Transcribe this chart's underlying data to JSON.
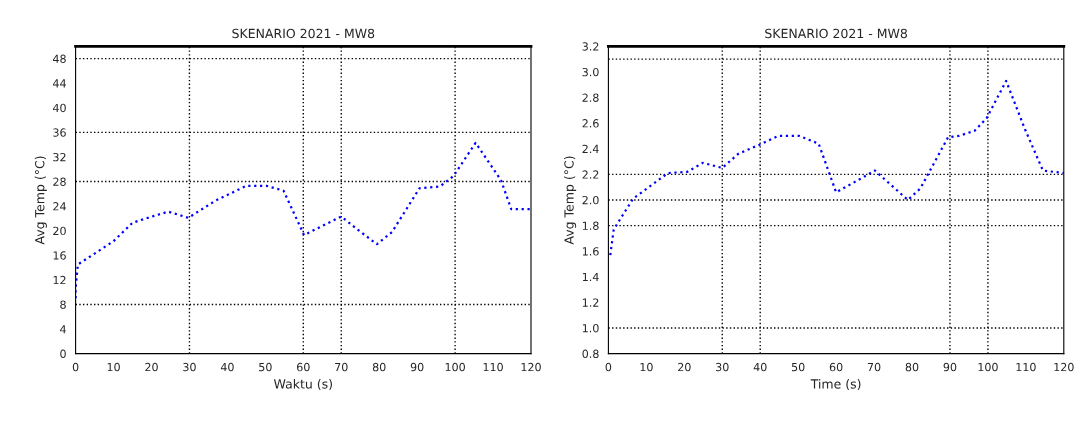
{
  "chart_data": [
    {
      "type": "line",
      "title": "SKENARIO 2021 - MW8",
      "xlabel": "Waktu (s)",
      "ylabel": "Avg Temp (°C)",
      "xlim": [
        0,
        120
      ],
      "xticks": [
        0,
        10,
        20,
        30,
        40,
        50,
        60,
        70,
        80,
        90,
        100,
        110,
        120
      ],
      "ylim": [
        0,
        50
      ],
      "yticks": [
        0,
        4,
        8,
        12,
        16,
        20,
        24,
        28,
        32,
        36,
        40,
        44,
        48
      ],
      "grid": false,
      "line_style": "dotted",
      "marker": "none",
      "ref_lines": [
        {
          "axis": "y",
          "value": 48,
          "color": "#000000",
          "line_style": "dotted"
        },
        {
          "axis": "y",
          "value": 36,
          "color": "#000000",
          "line_style": "dotted"
        },
        {
          "axis": "y",
          "value": 28,
          "color": "#000000",
          "line_style": "dotted"
        },
        {
          "axis": "y",
          "value": 8,
          "color": "#000000",
          "line_style": "dotted"
        },
        {
          "axis": "x",
          "value": 30,
          "color": "#000000",
          "line_style": "dotted"
        },
        {
          "axis": "x",
          "value": 60,
          "color": "#000000",
          "line_style": "dotted"
        },
        {
          "axis": "x",
          "value": 70,
          "color": "#000000",
          "line_style": "dotted"
        },
        {
          "axis": "x",
          "value": 100,
          "color": "#000000",
          "line_style": "dotted"
        }
      ],
      "series": [
        {
          "color": "#0000ff",
          "x": [
            0,
            0,
            0.6,
            10,
            15,
            21.7,
            24.4,
            29.7,
            36.9,
            45,
            50.3,
            54.8,
            60.2,
            70,
            74.5,
            79.4,
            83.4,
            90.6,
            96,
            99.6,
            105.4,
            112.1,
            114.8,
            120
          ],
          "values": [
            9,
            10.7,
            14.5,
            18.3,
            21.3,
            22.6,
            23.1,
            22.1,
            24.9,
            27.3,
            27.3,
            26.5,
            19.3,
            22.3,
            20.1,
            17.8,
            19.8,
            26.9,
            27.2,
            28.9,
            34.3,
            28.2,
            23.5,
            23.5
          ]
        }
      ]
    },
    {
      "type": "line",
      "title": "SKENARIO 2021 - MW8",
      "xlabel": "Time (s)",
      "ylabel": "Avg Temp (°C)",
      "xlim": [
        0,
        120
      ],
      "xticks": [
        0,
        10,
        20,
        30,
        40,
        50,
        60,
        70,
        80,
        90,
        100,
        110,
        120
      ],
      "ylim": [
        0.8,
        3.2
      ],
      "yticks": [
        0.8,
        {
          "value": 1,
          "label": "1.0"
        },
        1.2,
        1.4,
        1.6,
        1.8,
        {
          "value": 2,
          "label": "2.0"
        },
        2.2,
        2.4,
        2.6,
        2.8,
        {
          "value": 3,
          "label": "3.0"
        },
        3.2
      ],
      "grid": false,
      "line_style": "dotted",
      "marker": "none",
      "ref_lines": [
        {
          "axis": "y",
          "value": 3.1,
          "color": "#000000",
          "line_style": "dotted"
        },
        {
          "axis": "y",
          "value": 2.2,
          "color": "#000000",
          "line_style": "dotted"
        },
        {
          "axis": "y",
          "value": 2.0,
          "color": "#000000",
          "line_style": "dotted"
        },
        {
          "axis": "y",
          "value": 1.8,
          "color": "#000000",
          "line_style": "dotted"
        },
        {
          "axis": "y",
          "value": 1.0,
          "color": "#000000",
          "line_style": "dotted"
        },
        {
          "axis": "x",
          "value": 30,
          "color": "#000000",
          "line_style": "dotted"
        },
        {
          "axis": "x",
          "value": 40,
          "color": "#000000",
          "line_style": "dotted"
        },
        {
          "axis": "x",
          "value": 90,
          "color": "#000000",
          "line_style": "dotted"
        },
        {
          "axis": "x",
          "value": 100,
          "color": "#000000",
          "line_style": "dotted"
        }
      ],
      "series": [
        {
          "color": "#0000ff",
          "x": [
            0.5,
            1.4,
            6.5,
            11.1,
            15.7,
            20.8,
            24.9,
            30,
            34.2,
            39.7,
            44.8,
            50.3,
            55.4,
            60,
            65.5,
            70.2,
            78.9,
            82.2,
            89.5,
            92.3,
            96.5,
            99.7,
            104.8,
            109.8,
            114.5,
            120
          ],
          "values": [
            1.57,
            1.77,
            2.01,
            2.11,
            2.21,
            2.22,
            2.29,
            2.25,
            2.36,
            2.43,
            2.5,
            2.5,
            2.44,
            2.06,
            2.15,
            2.23,
            2.0,
            2.09,
            2.49,
            2.5,
            2.54,
            2.64,
            2.93,
            2.55,
            2.23,
            2.21
          ]
        }
      ]
    }
  ]
}
